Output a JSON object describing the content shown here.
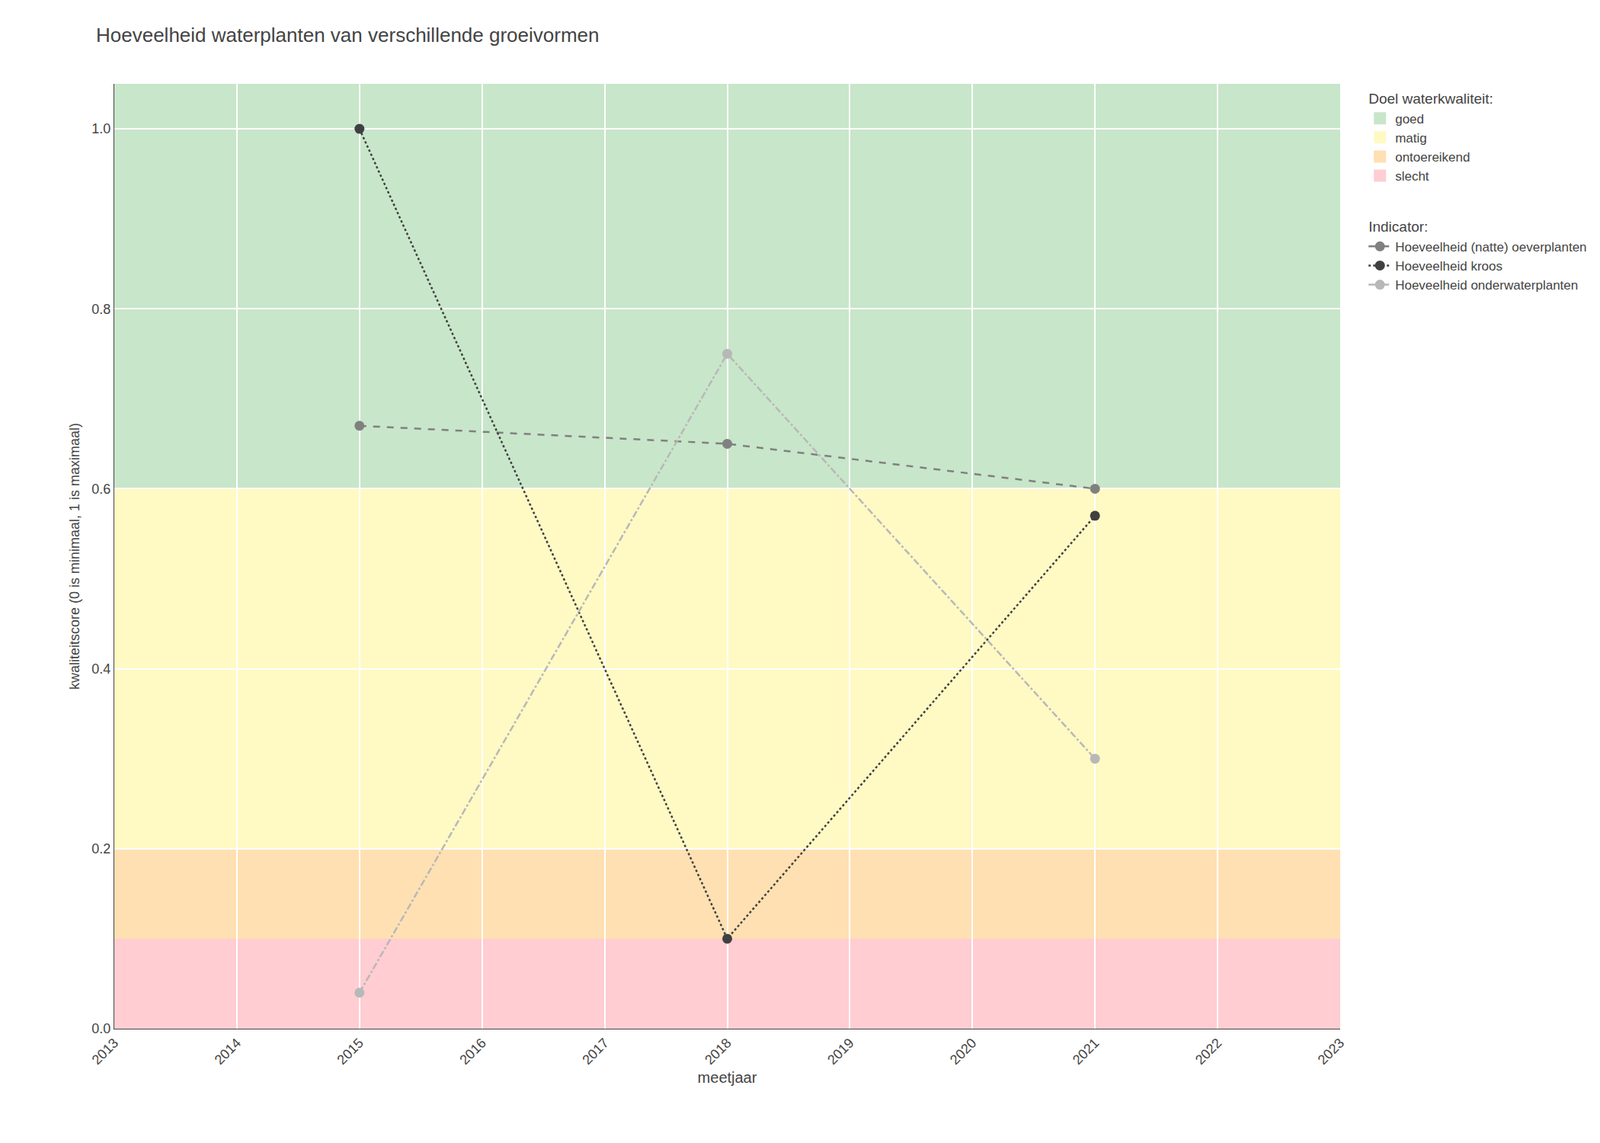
{
  "chart_data": {
    "type": "line",
    "title": "Hoeveelheid waterplanten van verschillende groeivormen",
    "xlabel": "meetjaar",
    "ylabel": "kwaliteitscore (0 is minimaal, 1 is maximaal)",
    "xlim": [
      2013,
      2023
    ],
    "ylim": [
      0.0,
      1.05
    ],
    "xticks": [
      2013,
      2014,
      2015,
      2016,
      2017,
      2018,
      2019,
      2020,
      2021,
      2022,
      2023
    ],
    "yticks": [
      {
        "value": 0.0,
        "label": "0.0"
      },
      0.2,
      0.4,
      0.6,
      0.8,
      {
        "value": 1.0,
        "label": "1.0"
      }
    ],
    "grid": true,
    "legend": "right",
    "x": [
      2015,
      2018,
      2021
    ],
    "series": [
      {
        "name": "Hoeveelheid (natte) oeverplanten",
        "color": "#808080",
        "line_style": "dashed",
        "marker": "circle",
        "values": [
          0.67,
          0.65,
          0.6
        ]
      },
      {
        "name": "Hoeveelheid kroos",
        "color": "#404040",
        "line_style": "dotted",
        "marker": "circle",
        "values": [
          1.0,
          0.1,
          0.57
        ]
      },
      {
        "name": "Hoeveelheid onderwaterplanten",
        "color": "#b8b8b8",
        "line_style": "dashdot",
        "marker": "circle",
        "values": [
          0.04,
          0.75,
          0.3
        ]
      }
    ],
    "bands": [
      {
        "name": "goed",
        "color": "#c8e6c9",
        "ymin": 0.6,
        "ymax": 1.05
      },
      {
        "name": "matig",
        "color": "#fff9c4",
        "ymin": 0.2,
        "ymax": 0.6
      },
      {
        "name": "ontoereikend",
        "color": "#ffe0b2",
        "ymin": 0.1,
        "ymax": 0.2
      },
      {
        "name": "slecht",
        "color": "#ffcdd2",
        "ymin": 0.0,
        "ymax": 0.1
      }
    ],
    "bands_title": "Doel waterkwaliteit:",
    "series_title": "Indicator:"
  }
}
